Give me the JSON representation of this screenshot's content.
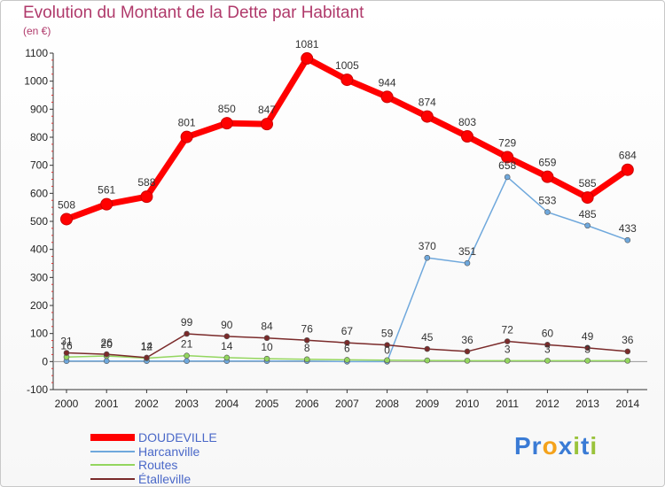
{
  "chart_data": {
    "type": "line",
    "title": "Evolution du Montant de la Dette par Habitant",
    "subtitle": "(en €)",
    "x": [
      "2000",
      "2001",
      "2002",
      "2003",
      "2004",
      "2005",
      "2006",
      "2007",
      "2008",
      "2009",
      "2010",
      "2011",
      "2012",
      "2013",
      "2014"
    ],
    "y_ticks": [
      "-100",
      "0",
      "100",
      "200",
      "300",
      "400",
      "500",
      "600",
      "700",
      "800",
      "900",
      "1000",
      "1100"
    ],
    "ylim": [
      -100,
      1100
    ],
    "grid": false,
    "legend_position": "bottom-left",
    "series": [
      {
        "name": "DOUDEVILLE",
        "color": "#ff0000",
        "values": [
          508,
          561,
          588,
          801,
          850,
          847,
          1081,
          1005,
          944,
          874,
          803,
          729,
          659,
          585,
          684
        ],
        "labels": [
          "508",
          "561",
          "588",
          "801",
          "850",
          "847",
          "1081",
          "1005",
          "944",
          "874",
          "803",
          "729",
          "659",
          "585",
          "684"
        ]
      },
      {
        "name": "Harcanville",
        "color": "#6fa8dc",
        "values": [
          2,
          2,
          2,
          2,
          2,
          2,
          2,
          0,
          0,
          370,
          351,
          658,
          533,
          485,
          433
        ],
        "labels": [
          "",
          "",
          "",
          "",
          "",
          "",
          "",
          "",
          "0",
          "370",
          "351",
          "658",
          "533",
          "485",
          "433"
        ]
      },
      {
        "name": "Routes",
        "color": "#93d65e",
        "values": [
          16,
          20,
          12,
          21,
          14,
          10,
          8,
          6,
          5,
          4,
          3,
          3,
          3,
          3,
          3
        ],
        "labels": [
          "16",
          "20",
          "12",
          "21",
          "14",
          "10",
          "8",
          "6",
          "",
          "",
          "",
          "3",
          "3",
          "3",
          ""
        ]
      },
      {
        "name": "Étalleville",
        "color": "#7a2a2a",
        "values": [
          31,
          26,
          14,
          99,
          90,
          84,
          76,
          67,
          59,
          45,
          36,
          72,
          60,
          49,
          36
        ],
        "labels": [
          "31",
          "26",
          "14",
          "99",
          "90",
          "84",
          "76",
          "67",
          "59",
          "45",
          "36",
          "72",
          "60",
          "49",
          "36"
        ]
      }
    ]
  },
  "logo": {
    "parts": [
      {
        "text": "Pr",
        "color": "#3a7bd5"
      },
      {
        "text": "o",
        "color": "#f4a21b"
      },
      {
        "text": "x",
        "color": "#3a7bd5"
      },
      {
        "text": "i",
        "color": "#9ac33b"
      },
      {
        "text": "t",
        "color": "#3a7bd5"
      },
      {
        "text": "i",
        "color": "#9ac33b"
      }
    ]
  }
}
